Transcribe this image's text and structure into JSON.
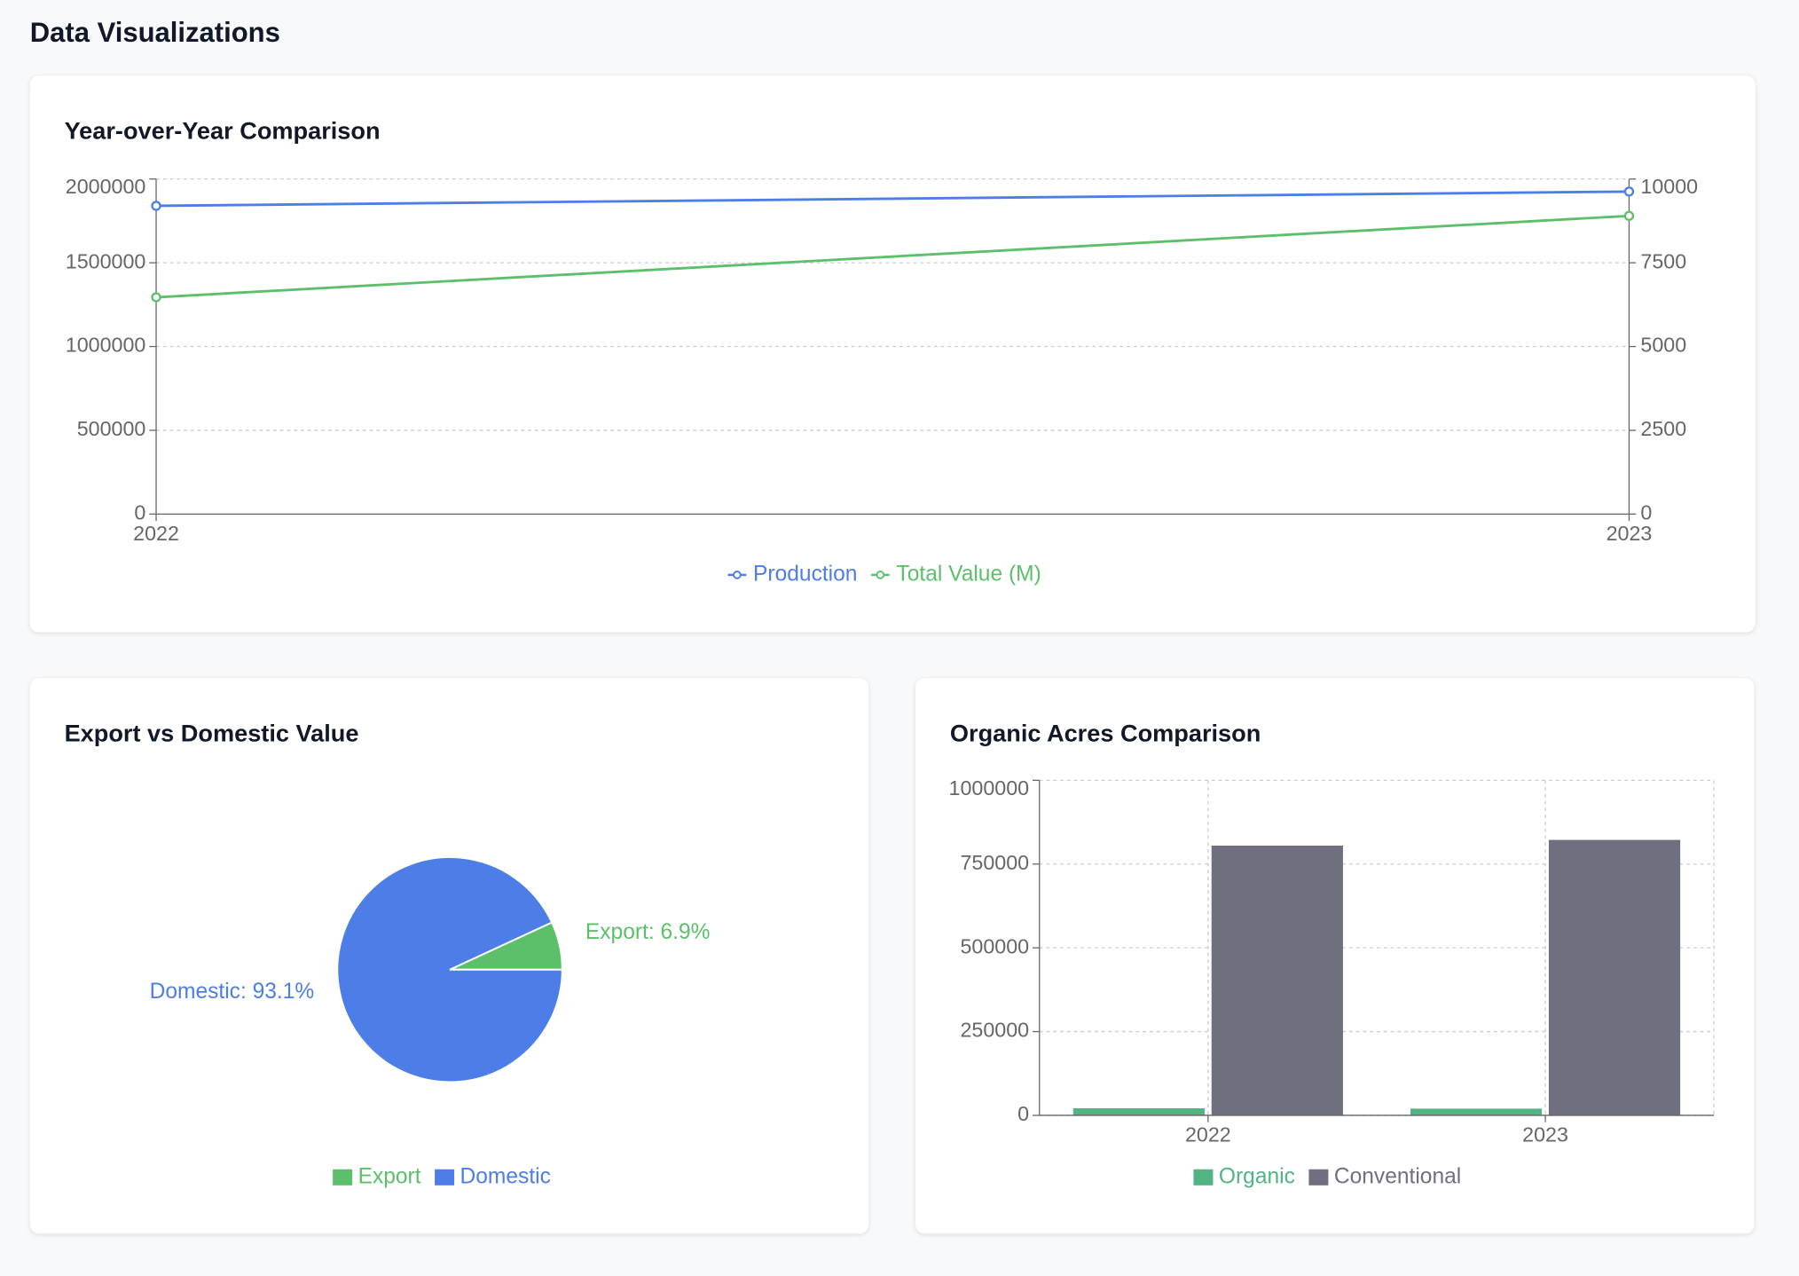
{
  "header": {
    "title": "Data Visualizations"
  },
  "chart_data": [
    {
      "type": "line",
      "title": "Year-over-Year Comparison",
      "categories": [
        "2022",
        "2023"
      ],
      "series": [
        {
          "name": "Production",
          "color": "#4d7ee8",
          "values": [
            1840000,
            1925000
          ]
        },
        {
          "name": "Total Value (M)",
          "color": "#5cbf6a",
          "axis": "y2",
          "values": [
            6470,
            8900
          ]
        }
      ],
      "ylim": [
        0,
        2000000
      ],
      "yticks": [
        0,
        500000,
        1000000,
        1500000,
        2000000
      ],
      "y2lim": [
        0,
        10000
      ],
      "y2ticks": [
        0,
        2500,
        5000,
        7500,
        10000
      ],
      "grid": true,
      "legend": "bottom"
    },
    {
      "type": "pie",
      "title": "Export vs Domestic Value",
      "categories": [
        "Export",
        "Domestic"
      ],
      "values": [
        6.9,
        93.1
      ],
      "value_labels": [
        "Export: 6.9%",
        "Domestic: 93.1%"
      ],
      "colors": [
        "#5cbf6a",
        "#4d7ee8"
      ],
      "legend": "bottom"
    },
    {
      "type": "bar",
      "title": "Organic Acres Comparison",
      "categories": [
        "2022",
        "2023"
      ],
      "series": [
        {
          "name": "Organic",
          "color": "#52b383",
          "values": [
            21000,
            20000
          ]
        },
        {
          "name": "Conventional",
          "color": "#6e7080",
          "values": [
            805000,
            822000
          ]
        }
      ],
      "ylim": [
        0,
        1000000
      ],
      "yticks": [
        0,
        250000,
        500000,
        750000,
        1000000
      ],
      "grid": true,
      "legend": "bottom"
    }
  ]
}
